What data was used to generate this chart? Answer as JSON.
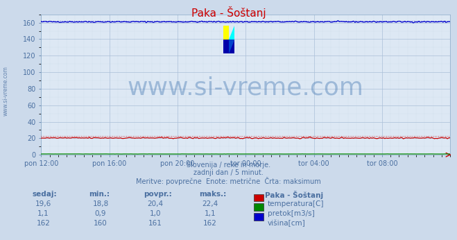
{
  "title": "Paka - Šoštanj",
  "bg_color": "#ccdaeb",
  "plot_bg_color": "#dde8f4",
  "grid_color_major": "#aabfd8",
  "grid_color_minor": "#bbcfe0",
  "x_labels": [
    "pon 12:00",
    "pon 16:00",
    "pon 20:00",
    "tor 00:00",
    "tor 04:00",
    "tor 08:00"
  ],
  "n_points": 289,
  "ylim": [
    0,
    170
  ],
  "yticks": [
    0,
    20,
    40,
    60,
    80,
    100,
    120,
    140,
    160
  ],
  "label_color": "#4a6fa0",
  "title_color": "#cc0000",
  "title_fontsize": 11,
  "temp_color": "#cc0000",
  "flow_color": "#008800",
  "height_color": "#0000cc",
  "watermark_color": "#5080b8",
  "watermark_text": "www.si-vreme.com",
  "watermark_fontsize": 26,
  "temp_sedaj": "19,6",
  "temp_min": "18,8",
  "temp_povpr": "20,4",
  "temp_maks": "22,4",
  "flow_sedaj": "1,1",
  "flow_min": "0,9",
  "flow_povpr": "1,0",
  "flow_maks": "1,1",
  "height_sedaj": "162",
  "height_min": "160",
  "height_povpr": "161",
  "height_maks": "162",
  "footnote1": "Slovenija / reke in morje.",
  "footnote2": "zadnji dan / 5 minut.",
  "footnote3": "Meritve: povprečne  Enote: metrične  Črta: maksimum",
  "legend_title": "Paka - Šoštanj",
  "legend_items": [
    "temperatura[C]",
    "pretok[m3/s]",
    "višina[cm]"
  ],
  "legend_colors": [
    "#cc0000",
    "#008800",
    "#0000cc"
  ],
  "table_headers": [
    "sedaj:",
    "min.:",
    "povpr.:",
    "maks.:"
  ],
  "table_color": "#4a6fa0",
  "spine_color": "#8aaac8",
  "arrow_color": "#cc0000"
}
